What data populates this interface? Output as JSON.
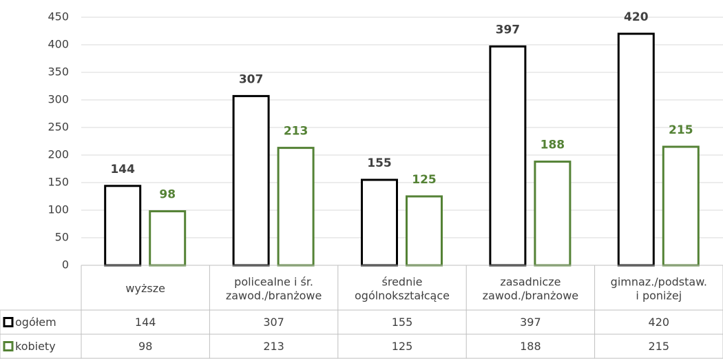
{
  "chart_data": {
    "type": "bar",
    "categories": [
      "wyższe",
      "policealne i śr.\nzawod./branżowe",
      "średnie\nogólnokształcące",
      "zasadnicze\nzawod./branżowe",
      "gimnaz./podstaw.\ni poniżej"
    ],
    "series": [
      {
        "name": "ogółem",
        "color": "#000000",
        "label_color": "#404040",
        "values": [
          144,
          307,
          155,
          397,
          420
        ]
      },
      {
        "name": "kobiety",
        "color": "#548235",
        "label_color": "#548235",
        "values": [
          98,
          213,
          125,
          188,
          215
        ]
      }
    ],
    "ylim": [
      0,
      450
    ],
    "yticks": [
      0,
      50,
      100,
      150,
      200,
      250,
      300,
      350,
      400,
      450
    ],
    "grid": true,
    "data_table": true
  }
}
